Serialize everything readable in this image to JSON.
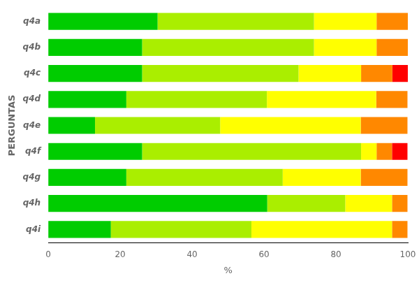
{
  "chart_data": {
    "type": "bar",
    "orientation": "horizontal",
    "stacked": true,
    "categories": [
      "q4a",
      "q4b",
      "q4c",
      "q4d",
      "q4e",
      "q4f",
      "q4g",
      "q4h",
      "q4i"
    ],
    "series": [
      {
        "color": "#00CC00",
        "values": [
          30.4,
          26.1,
          26.1,
          21.7,
          13.0,
          26.1,
          21.7,
          60.9,
          17.4
        ]
      },
      {
        "color": "#AAEE00",
        "values": [
          43.5,
          47.8,
          43.5,
          39.1,
          34.8,
          60.9,
          43.5,
          21.7,
          39.1
        ]
      },
      {
        "color": "#FFFF00",
        "values": [
          17.4,
          17.4,
          17.4,
          30.4,
          39.1,
          4.3,
          21.7,
          13.0,
          39.1
        ]
      },
      {
        "color": "#FF8800",
        "values": [
          8.7,
          8.7,
          8.7,
          8.7,
          13.0,
          4.3,
          13.0,
          4.3,
          4.3
        ]
      },
      {
        "color": "#FF0000",
        "values": [
          0.0,
          0.0,
          4.3,
          0.0,
          0.0,
          4.3,
          0.0,
          0.0,
          0.0
        ]
      }
    ],
    "xlabel": "%",
    "ylabel": "PERGUNTAS",
    "xlim": [
      0,
      100
    ],
    "xticks": [
      0,
      20,
      40,
      60,
      80,
      100
    ],
    "grid": false
  }
}
